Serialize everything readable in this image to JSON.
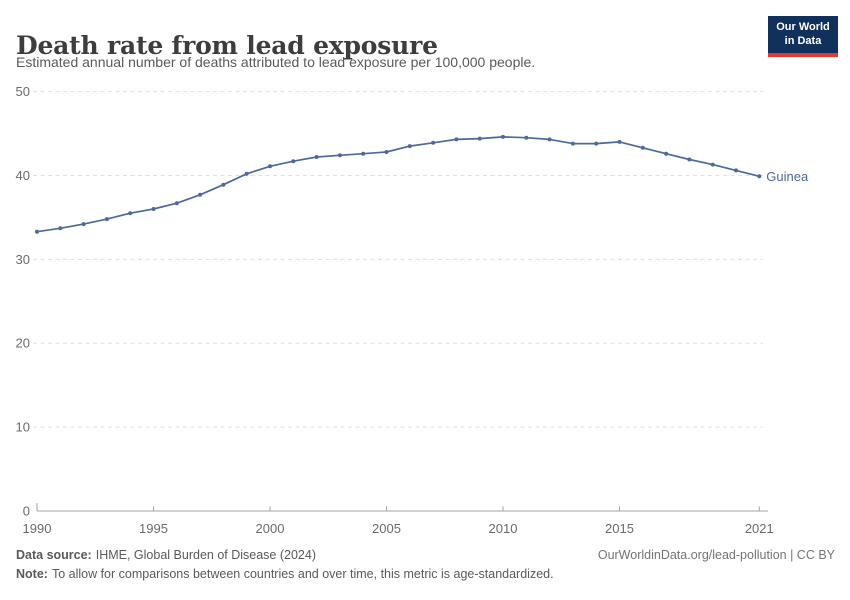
{
  "header": {
    "title": "Death rate from lead exposure",
    "subtitle": "Estimated annual number of deaths attributed to lead exposure per 100,000 people."
  },
  "logo": {
    "line1": "Our World",
    "line2": "in Data",
    "bg_color": "#12305c",
    "accent_color": "#dc3a32"
  },
  "footer": {
    "datasource_label": "Data source:",
    "datasource_value": "IHME, Global Burden of Disease (2024)",
    "link": "OurWorldinData.org/lead-pollution | CC BY",
    "note_label": "Note:",
    "note_value": "To allow for comparisons between countries and over time, this metric is age-standardized."
  },
  "chart_data": {
    "type": "line",
    "title": "Death rate from lead exposure",
    "subtitle": "Estimated annual number of deaths attributed to lead exposure per 100,000 people.",
    "xlabel": "",
    "ylabel": "",
    "x": [
      1990,
      1991,
      1992,
      1993,
      1994,
      1995,
      1996,
      1997,
      1998,
      1999,
      2000,
      2001,
      2002,
      2003,
      2004,
      2005,
      2006,
      2007,
      2008,
      2009,
      2010,
      2011,
      2012,
      2013,
      2014,
      2015,
      2016,
      2017,
      2018,
      2019,
      2020,
      2021
    ],
    "series": [
      {
        "name": "Guinea",
        "color": "#4c6a9c",
        "values": [
          33.3,
          33.7,
          34.2,
          34.8,
          35.5,
          36.0,
          36.7,
          37.7,
          38.9,
          40.2,
          41.1,
          41.7,
          42.2,
          42.4,
          42.6,
          42.8,
          43.5,
          43.9,
          44.3,
          44.4,
          44.6,
          44.5,
          44.3,
          43.8,
          43.8,
          44.0,
          43.3,
          42.6,
          41.9,
          41.3,
          40.6,
          39.9
        ]
      }
    ],
    "ylim": [
      0,
      50
    ],
    "yticks": [
      0,
      10,
      20,
      30,
      40,
      50
    ],
    "xticks": [
      1990,
      1995,
      2000,
      2005,
      2010,
      2015,
      2021
    ],
    "grid": "horizontal-dashed",
    "legend_position": "end-of-line-label"
  }
}
